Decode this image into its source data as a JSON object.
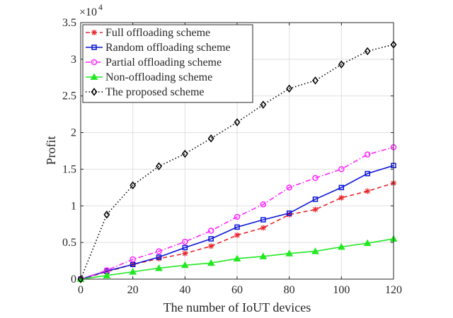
{
  "chart_data": {
    "type": "line",
    "title": "",
    "xlabel": "The number of IoUT devices",
    "ylabel": "Profit",
    "y_multiplier_label": "×10",
    "y_multiplier_exponent": "4",
    "xlim": [
      0,
      120
    ],
    "ylim": [
      0,
      3.5
    ],
    "x_ticks": [
      0,
      20,
      40,
      60,
      80,
      100,
      120
    ],
    "y_ticks": [
      0,
      0.5,
      1,
      1.5,
      2,
      2.5,
      3,
      3.5
    ],
    "grid": true,
    "legend_position": "top-left",
    "x": [
      0,
      10,
      20,
      30,
      40,
      50,
      60,
      70,
      80,
      90,
      100,
      110,
      120
    ],
    "series": [
      {
        "name": "Full offloading scheme",
        "color": "#e8262b",
        "line_style": "dashed",
        "marker": "asterisk",
        "values": [
          0,
          0.1,
          0.2,
          0.28,
          0.35,
          0.45,
          0.6,
          0.7,
          0.88,
          0.95,
          1.11,
          1.2,
          1.31
        ]
      },
      {
        "name": "Random offloading scheme",
        "color": "#0a14d6",
        "line_style": "solid",
        "marker": "square",
        "values": [
          0,
          0.11,
          0.2,
          0.3,
          0.43,
          0.55,
          0.71,
          0.81,
          0.9,
          1.09,
          1.25,
          1.44,
          1.55
        ]
      },
      {
        "name": "Partial offloading scheme",
        "color": "#ff24ff",
        "line_style": "dashdot",
        "marker": "circle",
        "values": [
          0,
          0.12,
          0.27,
          0.38,
          0.51,
          0.66,
          0.85,
          1.02,
          1.25,
          1.38,
          1.5,
          1.7,
          1.8
        ]
      },
      {
        "name": "Non-offloading scheme",
        "color": "#22e822",
        "line_style": "solid",
        "marker": "triangle",
        "values": [
          0,
          0.05,
          0.1,
          0.15,
          0.19,
          0.22,
          0.28,
          0.31,
          0.35,
          0.38,
          0.44,
          0.49,
          0.55
        ]
      },
      {
        "name": "The proposed scheme",
        "color": "#000000",
        "line_style": "dotted",
        "marker": "diamond",
        "values": [
          0,
          0.88,
          1.28,
          1.54,
          1.71,
          1.92,
          2.14,
          2.38,
          2.6,
          2.71,
          2.93,
          3.11,
          3.2
        ]
      }
    ]
  }
}
